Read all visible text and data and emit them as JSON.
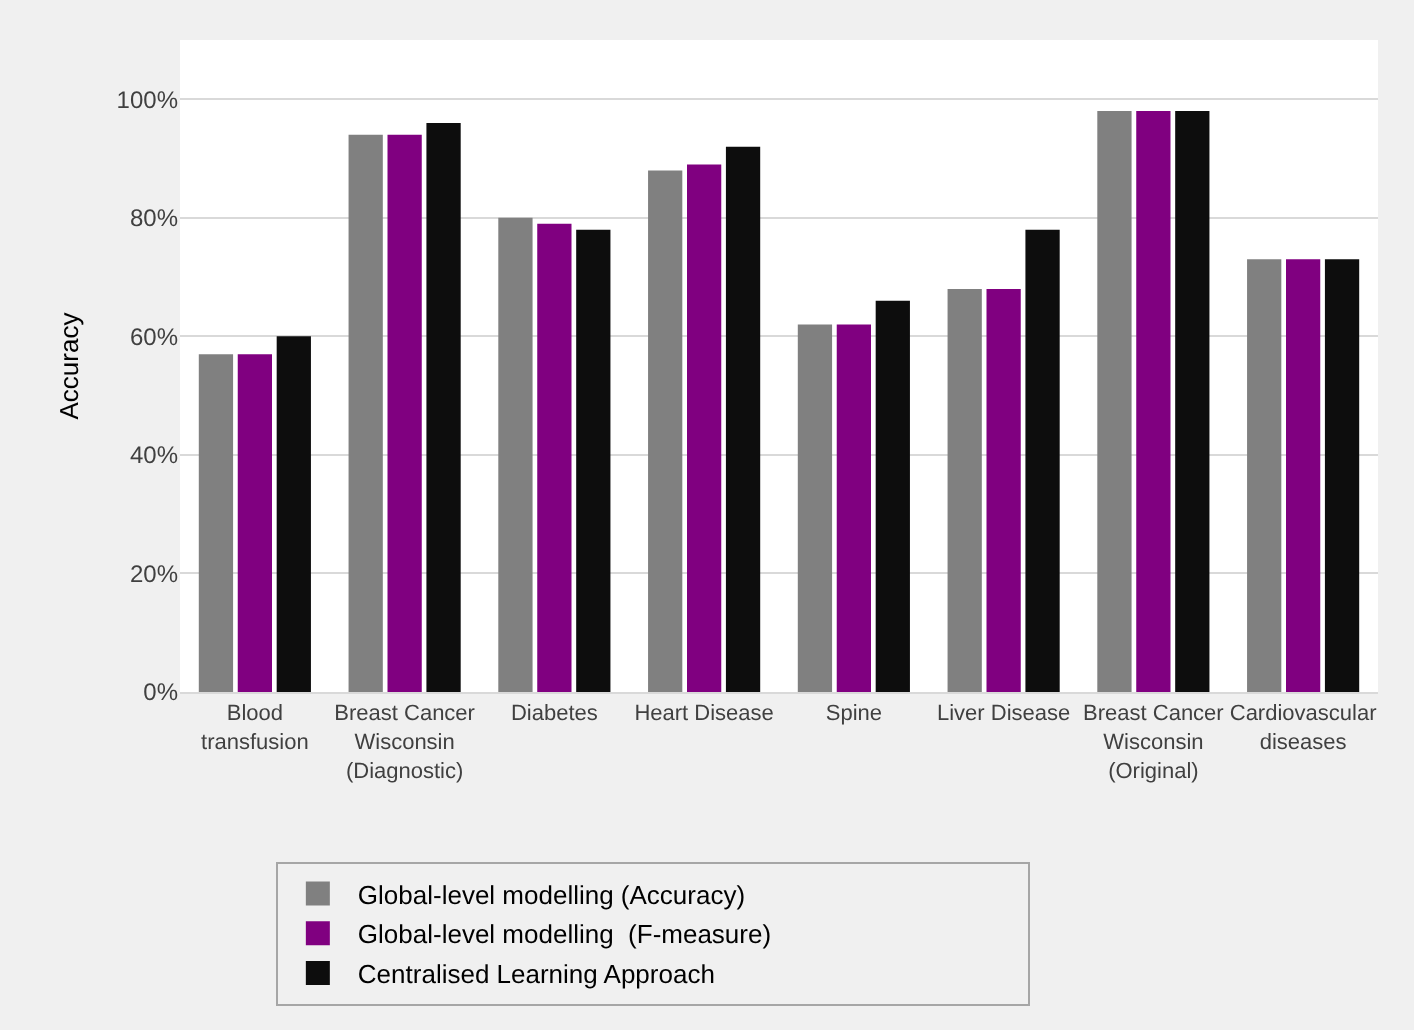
{
  "chart_data": {
    "type": "bar",
    "ylabel": "Accuracy",
    "categories": [
      "Blood transfusion",
      "Breast Cancer Wisconsin (Diagnostic)",
      "Diabetes",
      "Heart Disease",
      "Spine",
      "Liver Disease",
      "Breast Cancer Wisconsin (Original)",
      "Cardiovascular diseases"
    ],
    "series": [
      {
        "name": "Global-level modelling (Accuracy)",
        "color": "#808080",
        "values": [
          57,
          94,
          80,
          88,
          62,
          68,
          98,
          73
        ]
      },
      {
        "name": "Global-level modelling  (F-measure)",
        "color": "#800080",
        "values": [
          57,
          94,
          79,
          89,
          62,
          68,
          98,
          73
        ]
      },
      {
        "name": "Centralised Learning Approach",
        "color": "#0d0d0d",
        "values": [
          60,
          96,
          78,
          92,
          66,
          78,
          98,
          73
        ]
      }
    ],
    "ylim": [
      0,
      110
    ],
    "yticks": [
      {
        "value": 0,
        "label": "0%"
      },
      {
        "value": 20,
        "label": "20%"
      },
      {
        "value": 40,
        "label": "40%"
      },
      {
        "value": 60,
        "label": "60%"
      },
      {
        "value": 80,
        "label": "80%"
      },
      {
        "value": 100,
        "label": "100%"
      }
    ],
    "grid": "y",
    "legend": "bottom"
  }
}
